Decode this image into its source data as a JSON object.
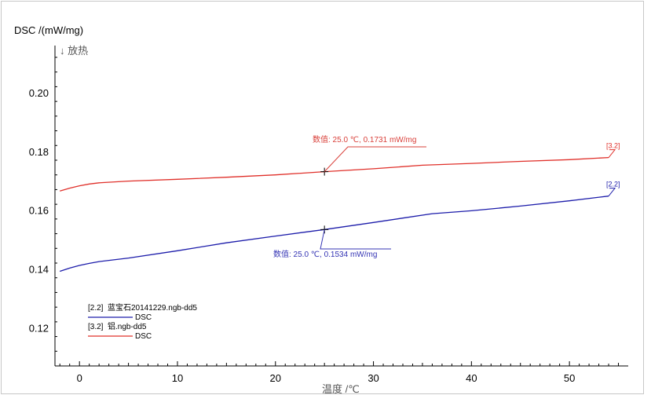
{
  "colors": {
    "background": "#ffffff",
    "frame": "#c8c8c8",
    "axis": "#000000",
    "series_red": "#e0302a",
    "series_blue": "#1c1caa",
    "cursor_label_red": "#d9403a",
    "cursor_label_blue": "#3434b4"
  },
  "chart_data": {
    "type": "line",
    "ylabel": "DSC /(mW/mg)",
    "y_direction_note": "↓ 放热",
    "xlabel": "温度 /℃",
    "xlim": [
      -2.5,
      56
    ],
    "ylim": [
      0.107,
      0.212
    ],
    "x_ticks": [
      0,
      10,
      20,
      30,
      40,
      50
    ],
    "x_tick_labels": [
      "0",
      "10",
      "20",
      "30",
      "40",
      "50"
    ],
    "y_ticks": [
      0.12,
      0.14,
      0.16,
      0.18,
      0.2
    ],
    "y_tick_labels": [
      "0.12",
      "0.14",
      "0.16",
      "0.18",
      "0.20"
    ],
    "grid": false,
    "legend_position": "bottom-left",
    "series": [
      {
        "id": "3.2",
        "tag": "[3.2]",
        "file": "铝.ngb-dd5",
        "signal": "DSC",
        "color": "#e0302a",
        "x": [
          -2,
          -1,
          0,
          1,
          2,
          5,
          10,
          15,
          20,
          25,
          30,
          35,
          40,
          45,
          50,
          54
        ],
        "y": [
          0.1665,
          0.1675,
          0.1683,
          0.1689,
          0.1693,
          0.1699,
          0.1705,
          0.1712,
          0.172,
          0.1731,
          0.1741,
          0.1753,
          0.1759,
          0.1766,
          0.1772,
          0.1779
        ],
        "cursor": {
          "x": 25.0,
          "y": 0.1731,
          "label_prefix": "数值",
          "label": "25.0 ℃, 0.1731 mW/mg"
        }
      },
      {
        "id": "2.2",
        "tag": "[2.2]",
        "file": "蓝宝石20141229.ngb-dd5",
        "signal": "DSC",
        "color": "#1c1caa",
        "x": [
          -2,
          -1,
          0,
          1,
          2,
          5,
          10,
          15,
          20,
          25,
          30,
          33,
          36,
          40,
          45,
          50,
          54
        ],
        "y": [
          0.1392,
          0.1403,
          0.1412,
          0.1419,
          0.1425,
          0.1437,
          0.1462,
          0.1489,
          0.1512,
          0.1534,
          0.1558,
          0.1573,
          0.1588,
          0.1598,
          0.1614,
          0.1632,
          0.1648
        ],
        "cursor": {
          "x": 25.0,
          "y": 0.1534,
          "label_prefix": "数值",
          "label": "25.0 ℃, 0.1534 mW/mg"
        }
      }
    ],
    "legend": [
      {
        "tag": "[2.2]",
        "file": "蓝宝石20141229.ngb-dd5",
        "signal": "DSC",
        "color": "#1c1caa"
      },
      {
        "tag": "[3.2]",
        "file": "铝.ngb-dd5",
        "signal": "DSC",
        "color": "#e0302a"
      }
    ]
  }
}
